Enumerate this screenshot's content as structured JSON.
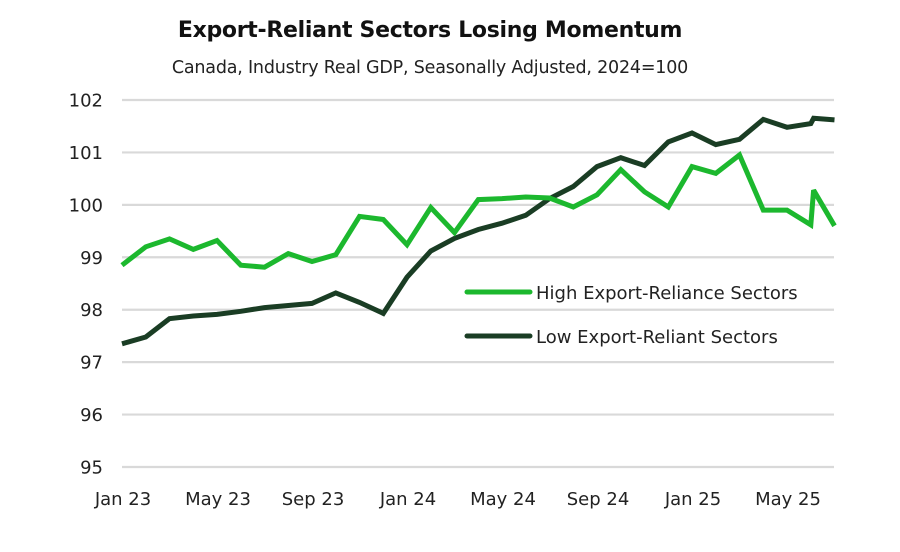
{
  "chart_data": {
    "type": "line",
    "title": "Export-Reliant Sectors Losing Momentum",
    "subtitle": "Canada, Industry Real GDP, Seasonally Adjusted, 2024=100",
    "xlabel": "",
    "ylabel": "",
    "ylim": [
      95,
      102
    ],
    "yticks": [
      "95",
      "96",
      "97",
      "98",
      "99",
      "100",
      "101",
      "102"
    ],
    "xtick_labels": [
      "Jan 23",
      "May 23",
      "Sep 23",
      "Jan 24",
      "May 24",
      "Sep 24",
      "Jan 25",
      "May 25"
    ],
    "xtick_month_index": [
      0,
      4,
      8,
      12,
      16,
      20,
      24,
      28
    ],
    "grid": "horizontal",
    "legend_position": "center-right",
    "x": [
      0,
      1,
      2,
      3,
      4,
      5,
      6,
      7,
      8,
      9,
      10,
      11,
      12,
      13,
      14,
      15,
      16,
      17,
      18,
      19,
      20,
      21,
      22,
      23,
      24,
      25,
      26,
      27,
      28,
      29,
      29,
      30
    ],
    "series": [
      {
        "name": "High Export-Reliance Sectors",
        "color": "#1cb82e",
        "values": [
          98.85,
          99.2,
          99.35,
          99.15,
          99.32,
          98.85,
          98.81,
          99.07,
          98.92,
          99.05,
          99.78,
          99.72,
          99.24,
          99.95,
          99.47,
          100.1,
          100.12,
          100.15,
          100.13,
          99.96,
          100.19,
          100.67,
          100.25,
          99.96,
          100.73,
          100.6,
          100.95,
          99.9,
          99.9,
          99.62,
          100.28,
          99.6
        ]
      },
      {
        "name": "Low Export-Reliant Sectors",
        "color": "#1a3d24",
        "values": [
          97.35,
          97.48,
          97.83,
          97.88,
          97.91,
          97.97,
          98.04,
          98.08,
          98.12,
          98.32,
          98.14,
          97.93,
          98.62,
          99.12,
          99.36,
          99.53,
          99.65,
          99.8,
          100.12,
          100.35,
          100.73,
          100.9,
          100.75,
          101.2,
          101.37,
          101.15,
          101.25,
          101.63,
          101.48,
          101.55,
          101.65,
          101.62
        ]
      }
    ]
  }
}
